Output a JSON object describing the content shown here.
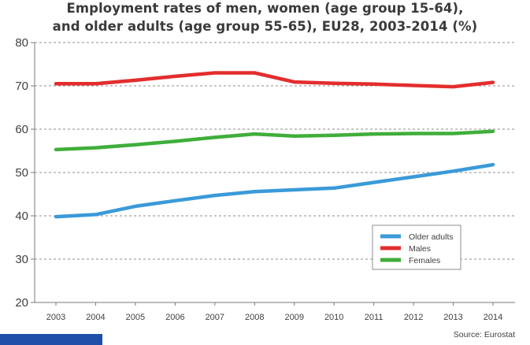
{
  "chart_data": {
    "type": "line",
    "title_line1": "Employment rates of men, women (age group 15-64),",
    "title_line2": "and older adults (age group 55-65), EU28, 2003-2014 (%)",
    "categories": [
      "2003",
      "2004",
      "2005",
      "2006",
      "2007",
      "2008",
      "2009",
      "2010",
      "2011",
      "2012",
      "2013",
      "2014"
    ],
    "ylim": [
      20,
      80
    ],
    "yticks": [
      20,
      30,
      40,
      50,
      60,
      70,
      80
    ],
    "grid": true,
    "legend_position": "bottom-right",
    "series": [
      {
        "name": "Older adults",
        "color": "#3a9ad9",
        "values": [
          39.8,
          40.3,
          42.2,
          43.5,
          44.7,
          45.6,
          46.0,
          46.4,
          47.7,
          49.0,
          50.3,
          51.8
        ]
      },
      {
        "name": "Males",
        "color": "#e32d2d",
        "values": [
          70.5,
          70.5,
          71.3,
          72.2,
          73.0,
          73.0,
          70.9,
          70.6,
          70.4,
          70.1,
          69.8,
          70.8
        ]
      },
      {
        "name": "Females",
        "color": "#3fae3a",
        "values": [
          55.3,
          55.7,
          56.4,
          57.2,
          58.1,
          58.9,
          58.4,
          58.6,
          58.9,
          59.0,
          59.0,
          59.5
        ]
      }
    ],
    "source": "Source: Eurostat"
  },
  "corner_strip_color": "#1f4fa8"
}
